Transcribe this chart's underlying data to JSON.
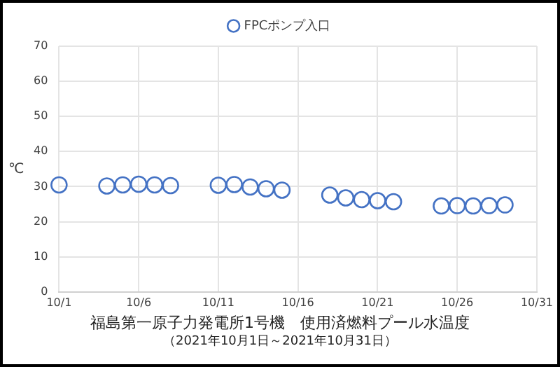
{
  "chart_data": {
    "type": "scatter",
    "title": "福島第一原子力発電所1号機　使用済燃料プール水温度",
    "subtitle": "（2021年10月1日～2021年10月31日）",
    "ylabel": "℃",
    "x": [
      "2021-10-01",
      "2021-10-04",
      "2021-10-05",
      "2021-10-06",
      "2021-10-07",
      "2021-10-08",
      "2021-10-11",
      "2021-10-12",
      "2021-10-13",
      "2021-10-14",
      "2021-10-15",
      "2021-10-18",
      "2021-10-19",
      "2021-10-20",
      "2021-10-21",
      "2021-10-22",
      "2021-10-25",
      "2021-10-26",
      "2021-10-27",
      "2021-10-28",
      "2021-10-29"
    ],
    "series": [
      {
        "name": "FPCポンプ入口",
        "color": "#4472c4",
        "values": [
          30.5,
          30.2,
          30.5,
          30.7,
          30.5,
          30.3,
          30.4,
          30.6,
          29.9,
          29.4,
          29.0,
          27.6,
          26.8,
          26.3,
          26.0,
          25.7,
          24.5,
          24.6,
          24.5,
          24.6,
          24.8
        ]
      }
    ],
    "xlim": [
      "2021-10-01",
      "2021-10-31"
    ],
    "xticks": [
      {
        "value": "2021-10-01",
        "label": "10/1"
      },
      {
        "value": "2021-10-06",
        "label": "10/6"
      },
      {
        "value": "2021-10-11",
        "label": "10/11"
      },
      {
        "value": "2021-10-16",
        "label": "10/16"
      },
      {
        "value": "2021-10-21",
        "label": "10/21"
      },
      {
        "value": "2021-10-26",
        "label": "10/26"
      },
      {
        "value": "2021-10-31",
        "label": "10/31"
      }
    ],
    "ylim": [
      0,
      70
    ],
    "yticks": [
      0,
      10,
      20,
      30,
      40,
      50,
      60,
      70
    ],
    "grid": true,
    "legend": "top",
    "marker": "circle"
  }
}
